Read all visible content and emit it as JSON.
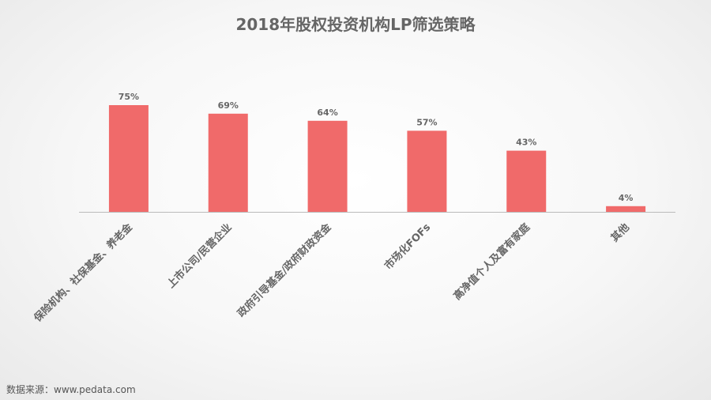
{
  "chart_data": {
    "type": "bar",
    "title": "2018年股权投资机构LP筛选策略",
    "categories": [
      "保险机构、社保基金、养老金",
      "上市公司/民营企业",
      "政府引导基金/政府财政资金",
      "市场化FOFs",
      "高净值个人及富有家庭",
      "其他"
    ],
    "values": [
      75,
      69,
      64,
      57,
      43,
      4
    ],
    "value_labels": [
      "75%",
      "69%",
      "64%",
      "57%",
      "43%",
      "4%"
    ],
    "unit": "%",
    "ylim": [
      0,
      100
    ],
    "xlabel": "",
    "ylabel": "",
    "grid": false,
    "legend": "none",
    "bar_color": "#f06a6a",
    "axis_color": "#bbbbbb",
    "label_color": "#666666",
    "title_color": "#666666"
  },
  "source_text": "数据来源：www.pedata.com"
}
